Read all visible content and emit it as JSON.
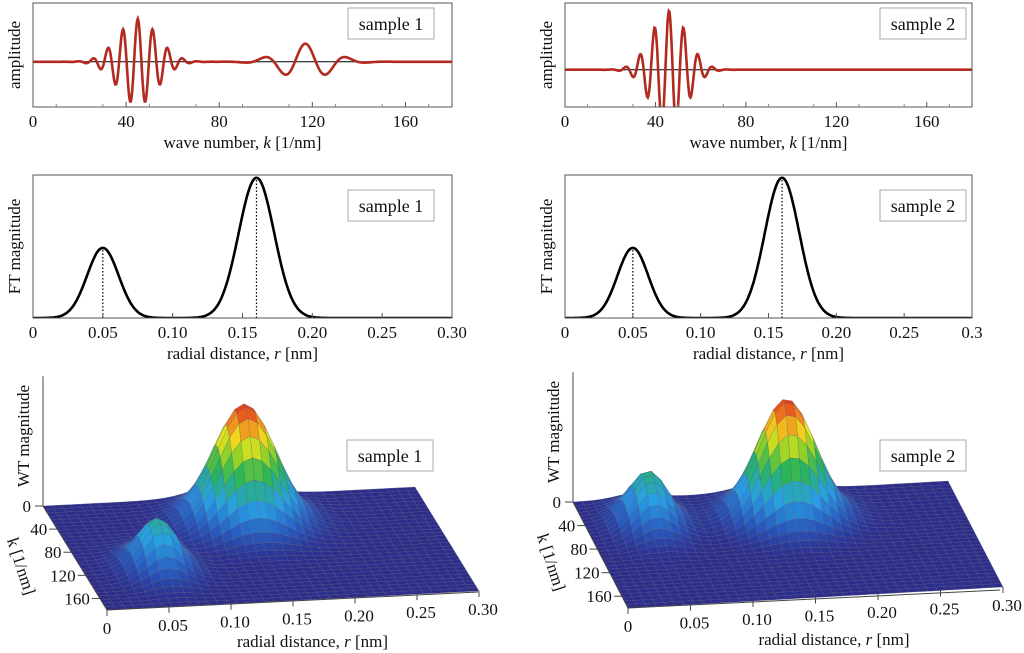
{
  "chart_data": [
    {
      "id": "wave1",
      "type": "line",
      "sample_label": "sample 1",
      "xlabel_pre": "wave number, ",
      "xlabel_var": "k",
      "xlabel_post": " [1/nm]",
      "ylabel": "amplitude",
      "xlim": [
        0,
        180
      ],
      "xticks": [
        0,
        40,
        80,
        120,
        160
      ],
      "ylim": [
        -1.0,
        1.3
      ],
      "color": "#b22a20",
      "packets": [
        {
          "center": 45,
          "width": 12,
          "period": 6.4,
          "amplitude": 0.95
        },
        {
          "center": 117,
          "width": 15,
          "period": 18,
          "amplitude": 0.4
        }
      ]
    },
    {
      "id": "wave2",
      "type": "line",
      "sample_label": "sample 2",
      "xlabel_pre": "wave number, ",
      "xlabel_var": "k",
      "xlabel_post": " [1/nm]",
      "ylabel": "amplitude",
      "xlim": [
        0,
        180
      ],
      "xticks": [
        0,
        40,
        80,
        120,
        160
      ],
      "ylim": [
        -0.95,
        1.7
      ],
      "color": "#b22a20",
      "packets": [
        {
          "center": 46,
          "width": 11,
          "period": 6.4,
          "amplitude": 1.5
        }
      ]
    },
    {
      "id": "ft1",
      "type": "line",
      "sample_label": "sample 1",
      "xlabel_pre": "radial distance, ",
      "xlabel_var": "r",
      "xlabel_post": " [nm]",
      "ylabel": "FT magnitude",
      "xlim": [
        0,
        0.3
      ],
      "xticks": [
        "0",
        "0.05",
        "0.10",
        "0.15",
        "0.20",
        "0.25",
        "0.30"
      ],
      "ylim": [
        0,
        1.02
      ],
      "color": "#000000",
      "peaks": [
        {
          "r": 0.05,
          "height": 0.5,
          "width": 0.016
        },
        {
          "r": 0.16,
          "height": 1.0,
          "width": 0.018
        }
      ]
    },
    {
      "id": "ft2",
      "type": "line",
      "sample_label": "sample 2",
      "xlabel_pre": "radial distance, ",
      "xlabel_var": "r",
      "xlabel_post": " [nm]",
      "ylabel": "FT magnitude",
      "xlim": [
        0,
        0.3
      ],
      "xticks": [
        "0",
        "0.05",
        "0.10",
        "0.15",
        "0.20",
        "0.25",
        "0.3"
      ],
      "ylim": [
        0,
        1.02
      ],
      "color": "#000000",
      "peaks": [
        {
          "r": 0.05,
          "height": 0.5,
          "width": 0.016
        },
        {
          "r": 0.16,
          "height": 1.0,
          "width": 0.018
        }
      ]
    },
    {
      "id": "wt1",
      "type": "surface",
      "sample_label": "sample 1",
      "xlabel_pre": "radial distance, ",
      "xlabel_var": "r",
      "xlabel_post": " [nm]",
      "ylabel": "k [1/nm]",
      "zlabel": "WT magnitude",
      "xlim": [
        0,
        0.3
      ],
      "xticks": [
        "0",
        "0.05",
        "0.10",
        "0.15",
        "0.20",
        "0.25",
        "0.30"
      ],
      "yticks": [
        "0",
        "40",
        "80",
        "120",
        "160"
      ],
      "zticks": [
        "0"
      ],
      "peaks": [
        {
          "r": 0.15,
          "k": 45,
          "height": 1.0,
          "width_r": 0.035,
          "width_k": 32
        },
        {
          "r": 0.06,
          "k": 115,
          "height": 0.42,
          "width_r": 0.022,
          "width_k": 28
        }
      ]
    },
    {
      "id": "wt2",
      "type": "surface",
      "sample_label": "sample 2",
      "xlabel_pre": "radial distance, ",
      "xlabel_var": "r",
      "xlabel_post": " [nm]",
      "ylabel": "k [1/nm]",
      "zlabel": "WT magnitude",
      "xlim": [
        0,
        0.3
      ],
      "xticks": [
        "0",
        "0.05",
        "0.10",
        "0.15",
        "0.20",
        "0.25",
        "0.30"
      ],
      "yticks": [
        "0",
        "40",
        "80",
        "120",
        "160"
      ],
      "zticks": [
        "0"
      ],
      "peaks": [
        {
          "r": 0.16,
          "k": 45,
          "height": 1.0,
          "width_r": 0.033,
          "width_k": 30
        },
        {
          "r": 0.05,
          "k": 45,
          "height": 0.45,
          "width_r": 0.022,
          "width_k": 30
        }
      ]
    }
  ]
}
